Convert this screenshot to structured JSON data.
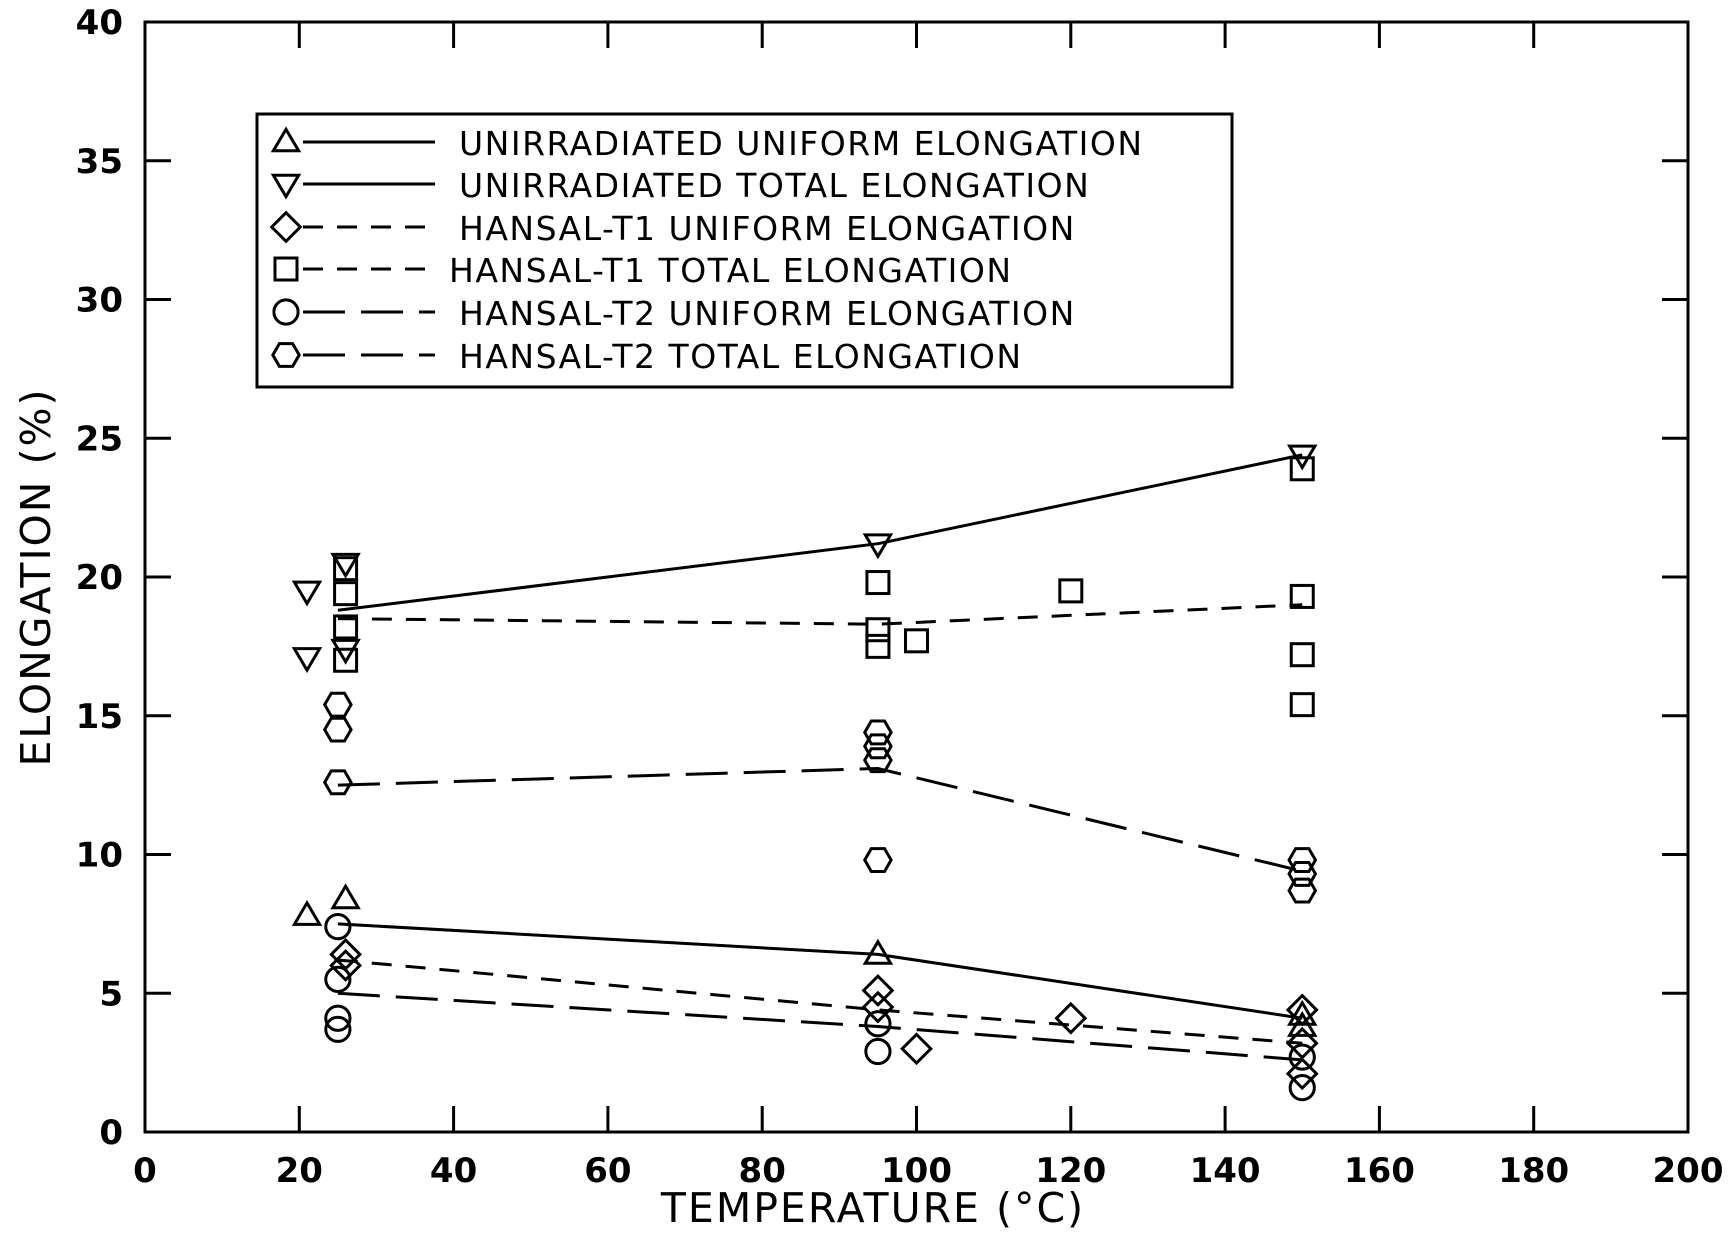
{
  "chart_data": {
    "type": "scatter",
    "xlabel": "TEMPERATURE (°C)",
    "ylabel": "ELONGATION (%)",
    "xlim": [
      0,
      200
    ],
    "ylim": [
      0,
      40
    ],
    "xticks": [
      "0",
      "20",
      "40",
      "60",
      "80",
      "100",
      "120",
      "140",
      "160",
      "180",
      "200"
    ],
    "yticks": [
      "0",
      "5",
      "10",
      "15",
      "20",
      "25",
      "30",
      "35",
      "40"
    ],
    "grid": false,
    "legend_position": "top-left",
    "series": [
      {
        "name": "UNIRRADIATED UNIFORM ELONGATION",
        "marker": "triangle-up",
        "line_style": "solid",
        "points": [
          [
            21,
            7.8
          ],
          [
            26,
            8.4
          ],
          [
            95,
            6.4
          ],
          [
            150,
            4.2
          ],
          [
            150,
            3.8
          ]
        ],
        "fit_line": [
          [
            25,
            7.5
          ],
          [
            95,
            6.4
          ],
          [
            150,
            4.1
          ]
        ]
      },
      {
        "name": "UNIRRADIATED TOTAL ELONGATION",
        "marker": "triangle-down",
        "line_style": "solid",
        "points": [
          [
            21,
            19.5
          ],
          [
            21,
            17.1
          ],
          [
            26,
            20.5
          ],
          [
            26,
            17.4
          ],
          [
            95,
            21.2
          ],
          [
            150,
            24.4
          ]
        ],
        "fit_line": [
          [
            25,
            18.8
          ],
          [
            95,
            21.2
          ],
          [
            150,
            24.4
          ]
        ]
      },
      {
        "name": "HANSAL-T1 UNIFORM ELONGATION",
        "marker": "diamond",
        "line_style": "dashed",
        "points": [
          [
            26,
            6.4
          ],
          [
            26,
            6.0
          ],
          [
            95,
            5.1
          ],
          [
            95,
            4.5
          ],
          [
            100,
            3.0
          ],
          [
            120,
            4.1
          ],
          [
            150,
            4.4
          ],
          [
            150,
            3.2
          ],
          [
            150,
            2.1
          ]
        ],
        "fit_line": [
          [
            25,
            6.2
          ],
          [
            95,
            4.4
          ],
          [
            150,
            3.2
          ]
        ]
      },
      {
        "name": "HANSAL-T1 TOTAL ELONGATION",
        "marker": "square",
        "line_style": "dashed",
        "points": [
          [
            26,
            20.3
          ],
          [
            26,
            19.4
          ],
          [
            26,
            18.2
          ],
          [
            26,
            17.0
          ],
          [
            95,
            19.8
          ],
          [
            95,
            18.1
          ],
          [
            95,
            17.5
          ],
          [
            100,
            17.7
          ],
          [
            120,
            19.5
          ],
          [
            150,
            23.9
          ],
          [
            150,
            19.3
          ],
          [
            150,
            17.2
          ],
          [
            150,
            15.4
          ]
        ],
        "fit_line": [
          [
            25,
            18.5
          ],
          [
            95,
            18.3
          ],
          [
            150,
            19.0
          ]
        ]
      },
      {
        "name": "HANSAL-T2 UNIFORM ELONGATION",
        "marker": "circle",
        "line_style": "long-dashed",
        "points": [
          [
            25,
            7.4
          ],
          [
            25,
            5.5
          ],
          [
            25,
            4.1
          ],
          [
            25,
            3.7
          ],
          [
            95,
            3.9
          ],
          [
            95,
            2.9
          ],
          [
            150,
            2.7
          ],
          [
            150,
            1.6
          ]
        ],
        "fit_line": [
          [
            25,
            5.0
          ],
          [
            95,
            3.8
          ],
          [
            150,
            2.6
          ]
        ]
      },
      {
        "name": "HANSAL-T2 TOTAL ELONGATION",
        "marker": "hexagon",
        "line_style": "long-dashed",
        "points": [
          [
            25,
            15.4
          ],
          [
            25,
            14.5
          ],
          [
            25,
            12.6
          ],
          [
            95,
            14.4
          ],
          [
            95,
            13.9
          ],
          [
            95,
            13.4
          ],
          [
            95,
            9.8
          ],
          [
            150,
            9.8
          ],
          [
            150,
            9.3
          ],
          [
            150,
            8.7
          ]
        ],
        "fit_line": [
          [
            25,
            12.5
          ],
          [
            95,
            13.1
          ],
          [
            150,
            9.4
          ]
        ]
      }
    ]
  }
}
